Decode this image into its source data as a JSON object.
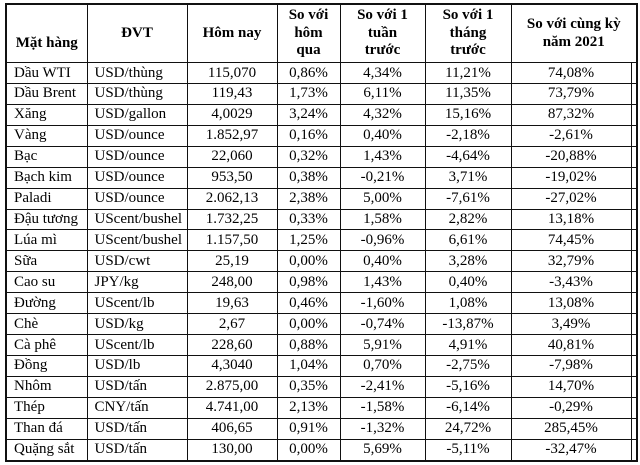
{
  "table": {
    "headers": [
      "Mặt hàng",
      "ĐVT",
      "Hôm nay",
      "So với\nhôm\nqua",
      "So với 1\ntuần\ntrước",
      "So với 1\ntháng\ntrước",
      "So với cùng kỳ\nnăm 2021"
    ],
    "rows": [
      [
        "Dầu WTI",
        "USD/thùng",
        "115,070",
        "0,86%",
        "4,34%",
        "11,21%",
        "74,08%"
      ],
      [
        "Dầu Brent",
        "USD/thùng",
        "119,43",
        "1,73%",
        "6,11%",
        "11,35%",
        "73,79%"
      ],
      [
        "Xăng",
        "USD/gallon",
        "4,0029",
        "3,24%",
        "4,32%",
        "15,16%",
        "87,32%"
      ],
      [
        "Vàng",
        "USD/ounce",
        "1.852,97",
        "0,16%",
        "0,40%",
        "-2,18%",
        "-2,61%"
      ],
      [
        "Bạc",
        "USD/ounce",
        "22,060",
        "0,32%",
        "1,43%",
        "-4,64%",
        "-20,88%"
      ],
      [
        "Bạch kim",
        "USD/ounce",
        "953,50",
        "0,38%",
        "-0,21%",
        "3,71%",
        "-19,02%"
      ],
      [
        "Paladi",
        "USD/ounce",
        "2.062,13",
        "2,38%",
        "5,00%",
        "-7,61%",
        "-27,02%"
      ],
      [
        "Đậu tương",
        "UScent/bushel",
        "1.732,25",
        "0,33%",
        "1,58%",
        "2,82%",
        "13,18%"
      ],
      [
        "Lúa mì",
        "UScent/bushel",
        "1.157,50",
        "1,25%",
        "-0,96%",
        "6,61%",
        "74,45%"
      ],
      [
        "Sữa",
        "USD/cwt",
        "25,19",
        "0,00%",
        "0,40%",
        "3,28%",
        "32,79%"
      ],
      [
        "Cao su",
        "JPY/kg",
        "248,00",
        "0,98%",
        "1,43%",
        "0,40%",
        "-3,43%"
      ],
      [
        "Đường",
        "UScent/lb",
        "19,63",
        "0,46%",
        "-1,60%",
        "1,08%",
        "13,08%"
      ],
      [
        "Chè",
        "USD/kg",
        "2,67",
        "0,00%",
        "-0,74%",
        "-13,87%",
        "3,49%"
      ],
      [
        "Cà phê",
        "UScent/lb",
        "228,60",
        "0,88%",
        "5,91%",
        "4,91%",
        "40,81%"
      ],
      [
        "Đồng",
        "USD/lb",
        "4,3040",
        "1,04%",
        "0,70%",
        "-2,75%",
        "-7,98%"
      ],
      [
        "Nhôm",
        "USD/tấn",
        "2.875,00",
        "0,35%",
        "-2,41%",
        "-5,16%",
        "14,70%"
      ],
      [
        "Thép",
        "CNY/tấn",
        "4.741,00",
        "2,13%",
        "-1,58%",
        "-6,14%",
        "-0,29%"
      ],
      [
        "Than đá",
        "USD/tấn",
        "406,65",
        "0,91%",
        "-1,32%",
        "24,72%",
        "285,45%"
      ],
      [
        "Quặng sắt",
        "USD/tấn",
        "130,00",
        "0,00%",
        "5,69%",
        "-5,11%",
        "-32,47%"
      ]
    ]
  }
}
